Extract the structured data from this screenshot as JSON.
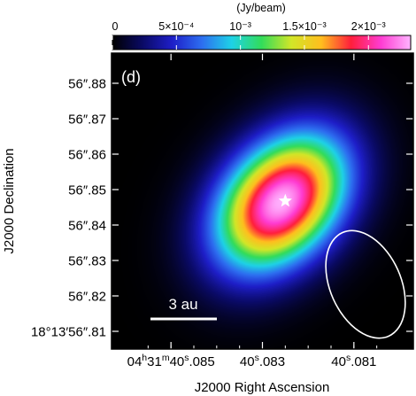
{
  "chart_data": {
    "type": "heatmap",
    "panel_label": "(d)",
    "colorbar": {
      "unit_label": "(Jy/beam)",
      "ticks": [
        {
          "value": 0,
          "label": "0"
        },
        {
          "value": 0.0005,
          "label": "5×10⁻⁴"
        },
        {
          "value": 0.001,
          "label": "10⁻³"
        },
        {
          "value": 0.0015,
          "label": "1.5×10⁻³"
        },
        {
          "value": 0.002,
          "label": "2×10⁻³"
        }
      ],
      "range": [
        0,
        0.00233
      ],
      "colormap": [
        "#000000",
        "#0a0a64",
        "#1e1ec8",
        "#2d6ef0",
        "#1ed2e6",
        "#32dc5a",
        "#d2e628",
        "#ffbe1e",
        "#ff1e3c",
        "#ff3cd2",
        "#ffb4ff"
      ]
    },
    "xlabel": "J2000 Right Ascension",
    "ylabel": "J2000 Declination",
    "x_ticks": [
      {
        "value": 40.085,
        "label": "04h31m40s.085"
      },
      {
        "value": 40.083,
        "label": "40s.083"
      },
      {
        "value": 40.081,
        "label": "40s.081"
      }
    ],
    "x_range": [
      40.0863,
      40.0797
    ],
    "y_ticks": [
      {
        "value": 56.81,
        "label": "18°13′56″.81"
      },
      {
        "value": 56.82,
        "label": "56″.82"
      },
      {
        "value": 56.83,
        "label": "56″.83"
      },
      {
        "value": 56.84,
        "label": "56″.84"
      },
      {
        "value": 56.85,
        "label": "56″.85"
      },
      {
        "value": 56.86,
        "label": "56″.86"
      },
      {
        "value": 56.87,
        "label": "56″.87"
      },
      {
        "value": 56.88,
        "label": "56″.88"
      }
    ],
    "y_range": [
      56.805,
      56.8885
    ],
    "peaks": [
      {
        "x": 40.083,
        "y": 56.8425,
        "value": 0.00232
      },
      {
        "x": 40.0822,
        "y": 56.8508,
        "value": 0.00228
      }
    ],
    "star": {
      "x": 40.0825,
      "y": 56.8468
    },
    "scale_bar": {
      "label": "3 au"
    },
    "beam_ellipse": true,
    "grid": false,
    "background": "#000000"
  }
}
